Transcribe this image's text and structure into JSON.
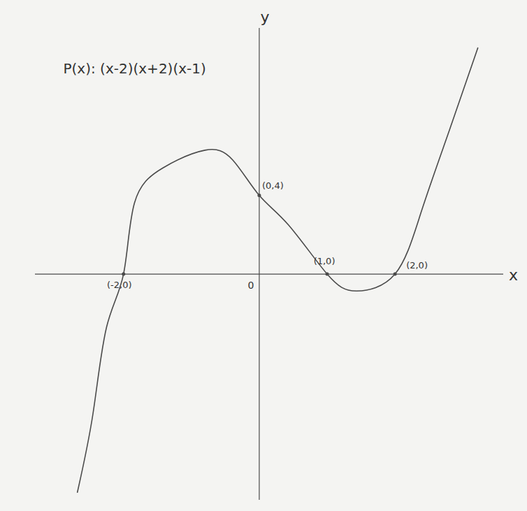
{
  "chart_data": {
    "type": "line",
    "title": "P(x): (x-2)(x+2)(x-1)",
    "x_label": "x",
    "y_label": "y",
    "color": "#4a4a4a",
    "x": [
      -2.68,
      -2.45,
      -2.25,
      -2,
      -1.84,
      -1.42,
      -0.8,
      -0.39,
      0,
      0.43,
      1,
      1.43,
      2,
      2.39,
      2.8,
      3.22
    ],
    "values": [
      -11.1,
      -7.1,
      -2.7,
      0,
      3.6,
      5.4,
      6.3,
      5.8,
      4,
      2.5,
      0,
      -0.86,
      0,
      3.2,
      7.3,
      11.5
    ],
    "xlim": [
      -3.3,
      3.6
    ],
    "ylim": [
      -11.5,
      12.5
    ],
    "xticks": [],
    "yticks": [],
    "tick_labels": false,
    "grid": false,
    "points": [
      {
        "x": -2,
        "y": 0,
        "label": "(-2,0)"
      },
      {
        "x": 0,
        "y": 4,
        "label": "(0,4)"
      },
      {
        "x": 1,
        "y": 0,
        "label": "(1,0)"
      },
      {
        "x": 2,
        "y": 0,
        "label": "(2,0)"
      }
    ],
    "annotations": [
      {
        "text": "0",
        "x": 0,
        "y": 0
      }
    ]
  }
}
